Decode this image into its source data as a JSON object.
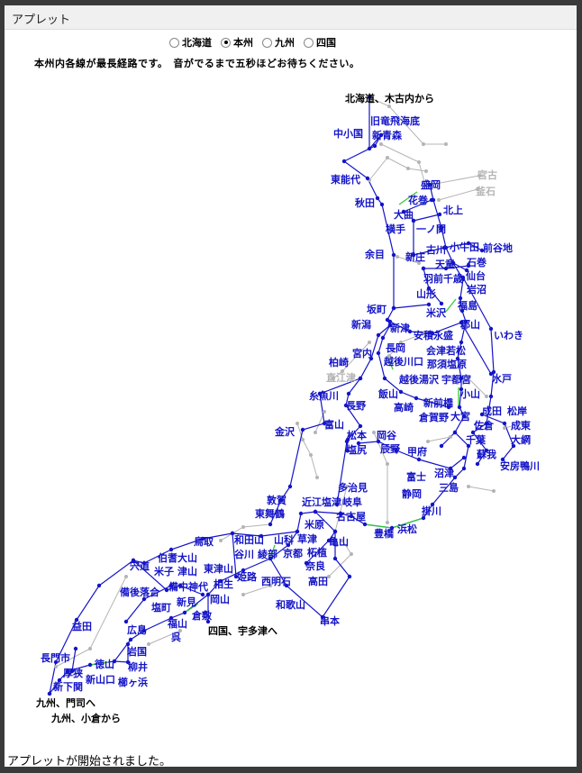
{
  "window": {
    "title": "アプレット"
  },
  "regions": {
    "options": [
      {
        "label": "北海道",
        "selected": false
      },
      {
        "label": "本州",
        "selected": true
      },
      {
        "label": "九州",
        "selected": false
      },
      {
        "label": "四国",
        "selected": false
      }
    ]
  },
  "instruction": "本州内各線が最長経路です。　音がでるまで五秒ほどお待ちください。",
  "map": {
    "colors": {
      "route": "#1414c8",
      "inactive": "#b4b4b4",
      "highlight": "#33cc33",
      "endpoint_label": "#000000"
    },
    "endpoints": [
      "北海道、木古内から",
      "四国、宇多津へ",
      "九州、門司へ",
      "九州、小倉から"
    ],
    "stations": [
      "旧竜飛海底",
      "中小国",
      "新青森",
      "東能代",
      "盛岡",
      "花巻",
      "秋田",
      "大曲",
      "北上",
      "横手",
      "一ノ関",
      "古川",
      "小牛田",
      "前谷地",
      "余目",
      "新庄",
      "石巻",
      "天童",
      "羽前千歳",
      "仙台",
      "岩沼",
      "山形",
      "福島",
      "坂町",
      "米沢",
      "新潟",
      "新津",
      "郡山",
      "安積永盛",
      "会津若松",
      "いわき",
      "宮内",
      "長岡",
      "柏崎",
      "越後川口",
      "那須塩原",
      "越後湯沢",
      "宇都宮",
      "水戸",
      "糸魚川",
      "飯山",
      "小山",
      "新前橋",
      "高崎",
      "長野",
      "成田",
      "松岸",
      "倉賀野",
      "大宮",
      "佐倉",
      "成東",
      "富山",
      "金沢",
      "松本",
      "岡谷",
      "千葉",
      "大網",
      "塩尻",
      "辰野",
      "甲府",
      "蘇我",
      "安房鴨川",
      "富士",
      "沼津",
      "三島",
      "静岡",
      "敦賀",
      "近江塩津",
      "岐阜",
      "多治見",
      "名古屋",
      "東舞鶴",
      "掛川",
      "米原",
      "草津",
      "豊橋",
      "浜松",
      "亀山",
      "柘植",
      "山科",
      "和田山",
      "綾部",
      "鳥取",
      "京都",
      "谷川",
      "伯耆大山",
      "津山",
      "宍道",
      "米子",
      "奈良",
      "東津山",
      "姫路",
      "西明石",
      "高田",
      "備中神代",
      "相生",
      "新見",
      "備後落合",
      "岡山",
      "倉敷",
      "塩町",
      "和歌山",
      "福山",
      "広島",
      "呉",
      "益田",
      "岩国",
      "徳山",
      "柳井",
      "長門市",
      "厚狭",
      "新山口",
      "櫛ヶ浜",
      "新下関",
      "串本"
    ],
    "inactive_stations": [
      "宮古",
      "釜石",
      "直江津"
    ]
  },
  "status": "アプレットが開始されました。"
}
